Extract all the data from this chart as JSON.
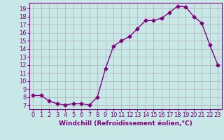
{
  "x": [
    0,
    1,
    2,
    3,
    4,
    5,
    6,
    7,
    8,
    9,
    10,
    11,
    12,
    13,
    14,
    15,
    16,
    17,
    18,
    19,
    20,
    21,
    22,
    23
  ],
  "y": [
    8.2,
    8.2,
    7.5,
    7.2,
    7.0,
    7.2,
    7.2,
    7.0,
    8.0,
    11.5,
    14.3,
    15.0,
    15.5,
    16.5,
    17.5,
    17.5,
    17.8,
    18.5,
    19.3,
    19.2,
    18.0,
    17.2,
    14.5,
    12.0
  ],
  "line_color": "#800080",
  "marker": "D",
  "marker_size": 2.5,
  "bg_color": "#c8e8e8",
  "grid_color": "#b0b0b0",
  "xlim": [
    -0.5,
    23.5
  ],
  "ylim": [
    6.5,
    19.7
  ],
  "yticks": [
    7,
    8,
    9,
    10,
    11,
    12,
    13,
    14,
    15,
    16,
    17,
    18,
    19
  ],
  "xtick_labels": [
    "0",
    "1",
    "2",
    "3",
    "4",
    "5",
    "6",
    "7",
    "8",
    "9",
    "10",
    "11",
    "12",
    "13",
    "14",
    "15",
    "16",
    "17",
    "18",
    "19",
    "20",
    "21",
    "22",
    "23"
  ],
  "font_color": "#800080",
  "tick_fontsize": 6,
  "xlabel": "Windchill (Refroidissement éolien,°C)",
  "xlabel_fontsize": 6.5,
  "linewidth": 1.0
}
